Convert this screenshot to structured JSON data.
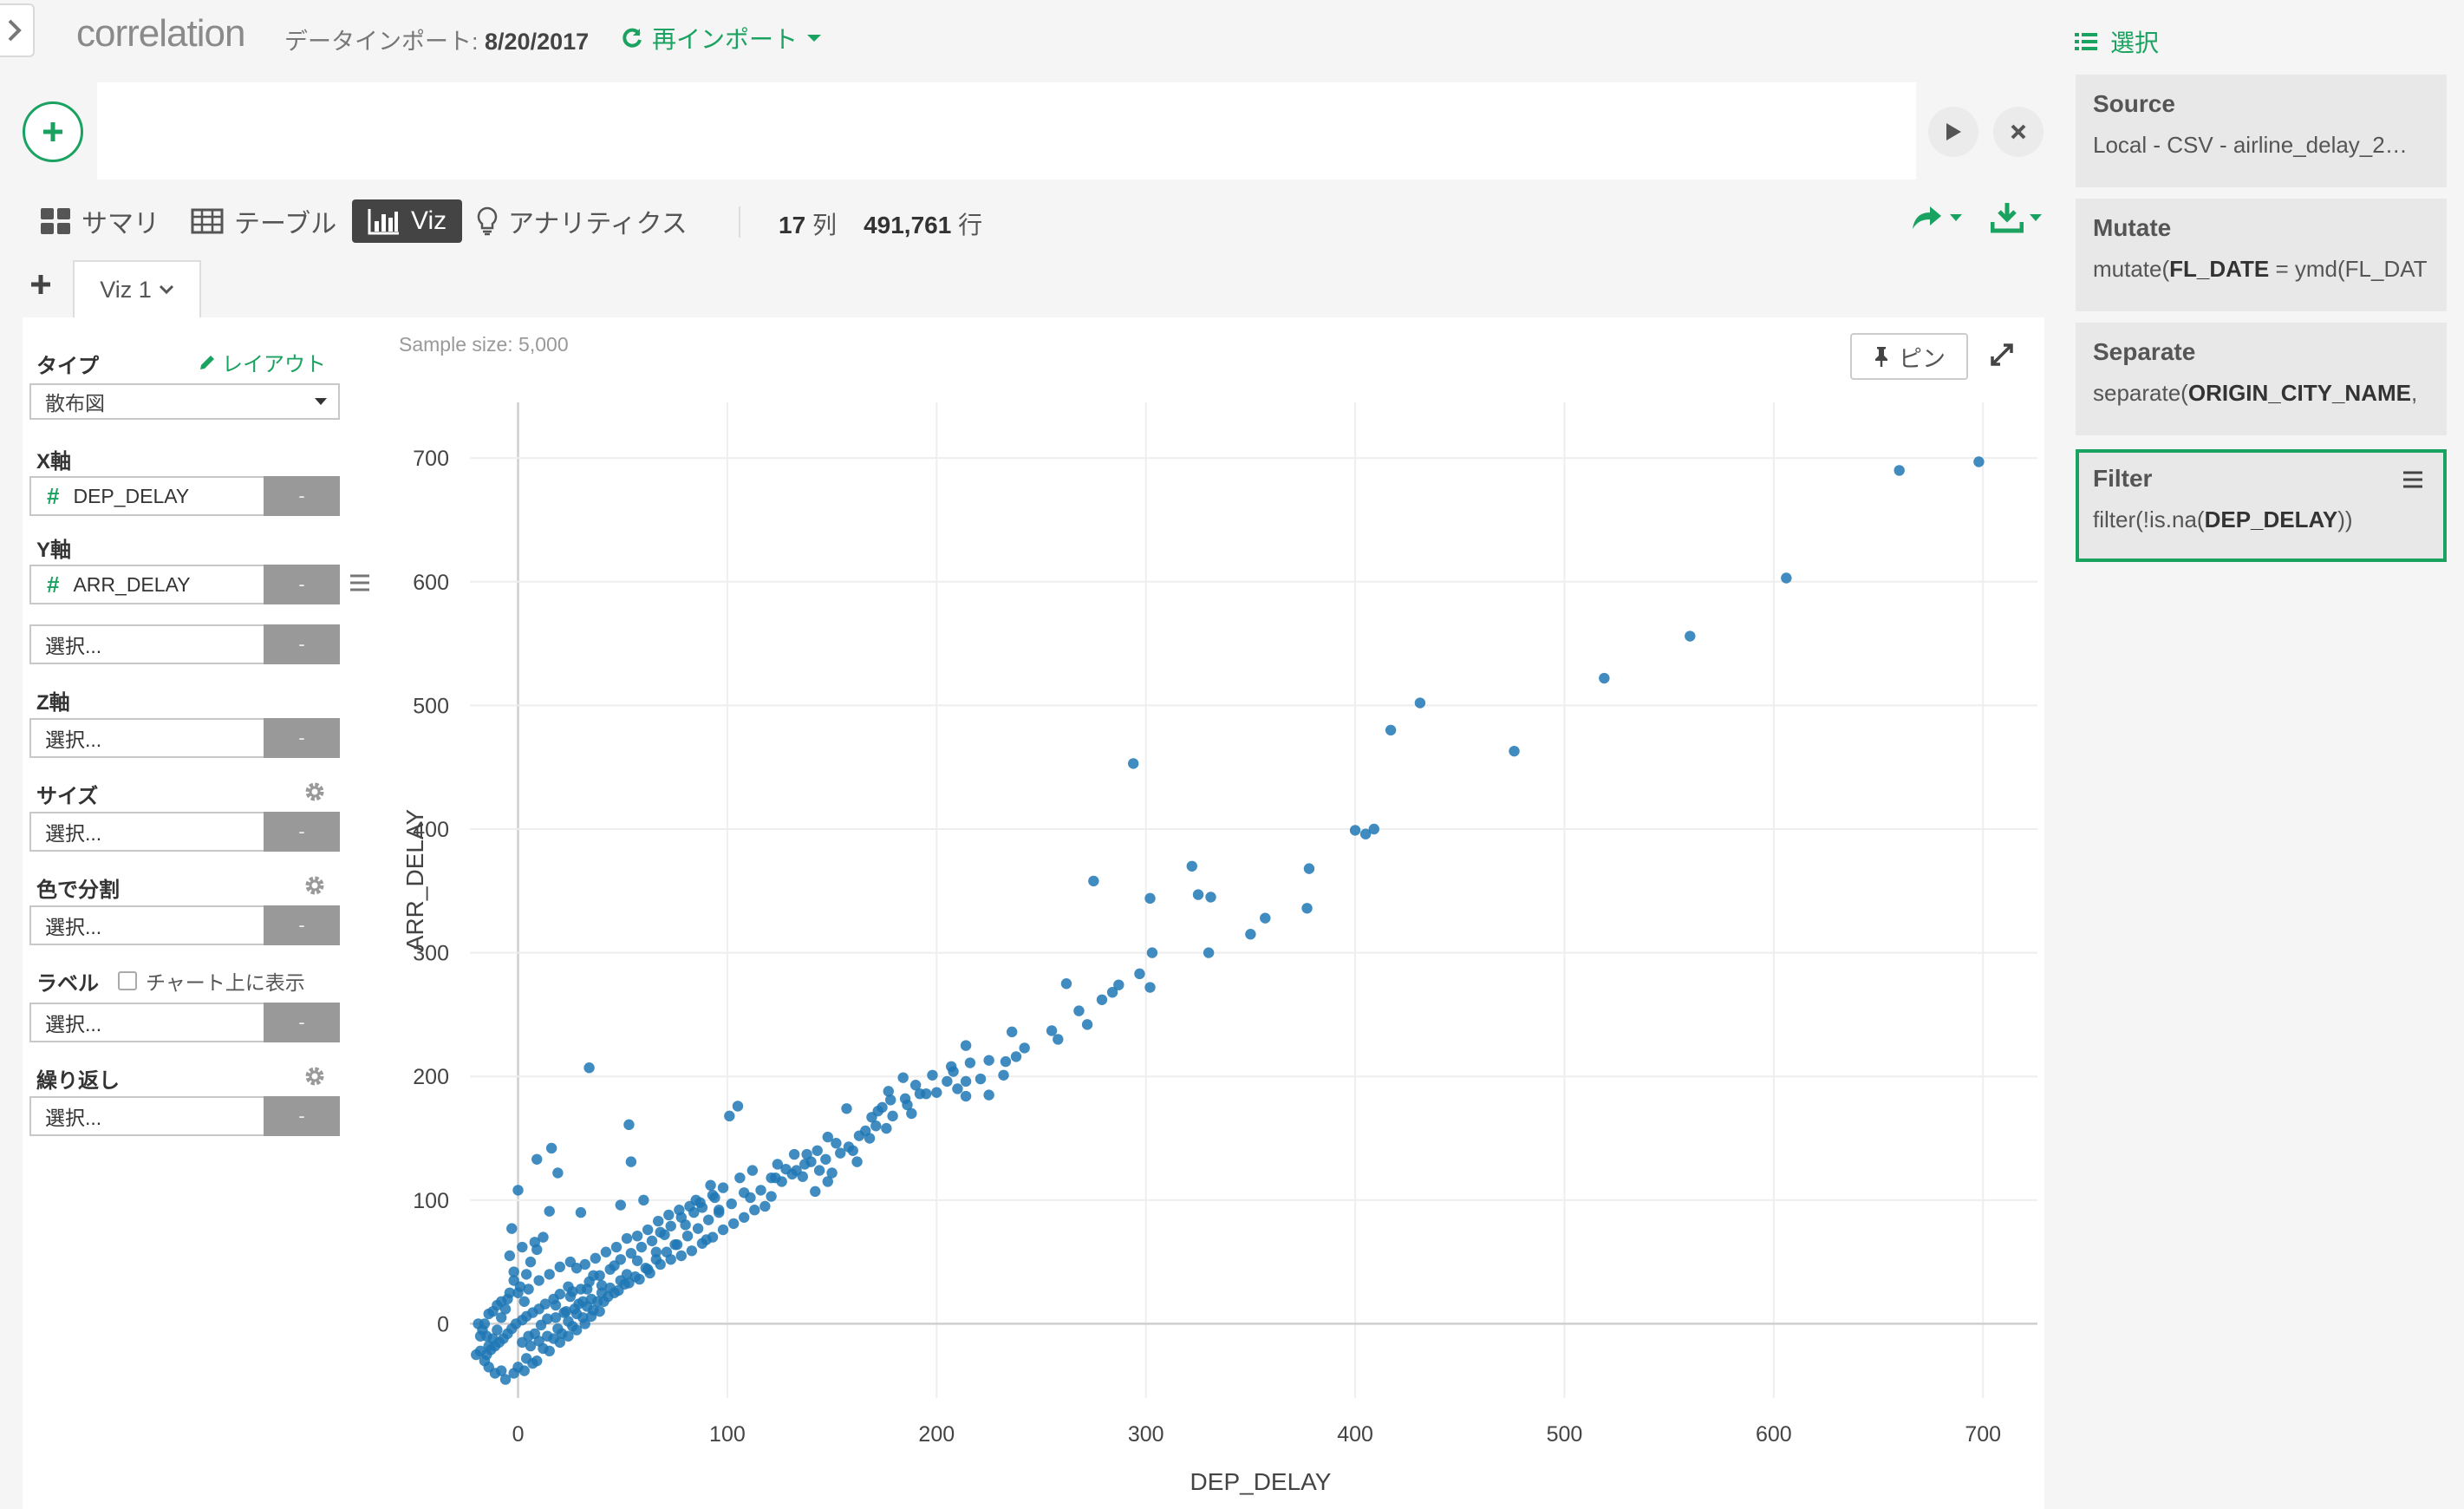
{
  "header": {
    "title": "correlation",
    "import_label": "データインポート: ",
    "import_date": "8/20/2017",
    "reimport_label": "再インポート"
  },
  "view_tabs": [
    {
      "label": "サマリ",
      "icon": "grid-icon"
    },
    {
      "label": "テーブル",
      "icon": "table-icon"
    },
    {
      "label": "Viz",
      "icon": "bar-chart-icon",
      "active": true
    },
    {
      "label": "アナリティクス",
      "icon": "lightbulb-icon"
    }
  ],
  "counts": {
    "cols_num": "17",
    "cols_unit": "列",
    "rows_num": "491,761",
    "rows_unit": "行"
  },
  "viz_tab": {
    "label": "Viz 1"
  },
  "config": {
    "type_label": "タイプ",
    "layout_link": "レイアウト",
    "type_value": "散布図",
    "x_label": "X軸",
    "x_value": "DEP_DELAY",
    "y_label": "Y軸",
    "y_value": "ARR_DELAY",
    "y2_placeholder": "選択...",
    "z_label": "Z軸",
    "z_placeholder": "選択...",
    "size_label": "サイズ",
    "size_placeholder": "選択...",
    "color_label": "色で分割",
    "color_placeholder": "選択...",
    "label_label": "ラベル",
    "label_checkbox": "チャート上に表示",
    "label_placeholder": "選択...",
    "repeat_label": "繰り返し",
    "repeat_placeholder": "選択...",
    "remove_btn": "-"
  },
  "chart_header": {
    "sample_size": "Sample size: 5,000",
    "pin_label": "ピン"
  },
  "sidebar": {
    "header": "選択",
    "steps": [
      {
        "title": "Source",
        "body_pre": "Local - CSV - airline_delay_2…",
        "body_bold": "",
        "body_post": ""
      },
      {
        "title": "Mutate",
        "body_pre": "mutate(",
        "body_bold": "FL_DATE",
        "body_post": " = ymd(FL_DAT"
      },
      {
        "title": "Separate",
        "body_pre": "separate(",
        "body_bold": "ORIGIN_CITY_NAME",
        "body_post": ","
      },
      {
        "title": "Filter",
        "body_pre": "filter(!is.na(",
        "body_bold": "DEP_DELAY",
        "body_post": "))"
      }
    ]
  },
  "colors": {
    "accent": "#1aa260",
    "point": "#1f77b4"
  },
  "chart_data": {
    "type": "scatter",
    "xlabel": "DEP_DELAY",
    "ylabel": "ARR_DELAY",
    "xlim": [
      -23,
      726
    ],
    "ylim": [
      -60,
      745
    ],
    "xticks": [
      0,
      100,
      200,
      300,
      400,
      500,
      600,
      700
    ],
    "yticks": [
      0,
      100,
      200,
      300,
      400,
      500,
      600,
      700
    ],
    "grid": true,
    "sample_size": 5000,
    "points": [
      [
        698,
        697
      ],
      [
        660,
        690
      ],
      [
        606,
        603
      ],
      [
        560,
        556
      ],
      [
        519,
        522
      ],
      [
        476,
        463
      ],
      [
        431,
        502
      ],
      [
        417,
        480
      ],
      [
        409,
        400
      ],
      [
        400,
        399
      ],
      [
        405,
        396
      ],
      [
        378,
        368
      ],
      [
        377,
        336
      ],
      [
        357,
        328
      ],
      [
        350,
        315
      ],
      [
        331,
        345
      ],
      [
        325,
        347
      ],
      [
        330,
        300
      ],
      [
        322,
        370
      ],
      [
        303,
        300
      ],
      [
        302,
        344
      ],
      [
        294,
        453
      ],
      [
        275,
        358
      ],
      [
        297,
        283
      ],
      [
        284,
        268
      ],
      [
        279,
        262
      ],
      [
        287,
        274
      ],
      [
        302,
        272
      ],
      [
        268,
        253
      ],
      [
        272,
        242
      ],
      [
        262,
        275
      ],
      [
        255,
        237
      ],
      [
        258,
        230
      ],
      [
        242,
        223
      ],
      [
        238,
        216
      ],
      [
        232,
        201
      ],
      [
        225,
        213
      ],
      [
        221,
        198
      ],
      [
        216,
        211
      ],
      [
        208,
        204
      ],
      [
        214,
        184
      ],
      [
        198,
        201
      ],
      [
        192,
        186
      ],
      [
        184,
        199
      ],
      [
        177,
        188
      ],
      [
        169,
        167
      ],
      [
        157,
        174
      ],
      [
        148,
        151
      ],
      [
        154,
        138
      ],
      [
        140,
        131
      ],
      [
        133,
        124
      ],
      [
        126,
        115
      ],
      [
        121,
        103
      ],
      [
        108,
        106
      ],
      [
        102,
        97
      ],
      [
        105,
        176
      ],
      [
        101,
        168
      ],
      [
        34,
        207
      ],
      [
        53,
        161
      ],
      [
        16,
        142
      ],
      [
        9,
        133
      ],
      [
        54,
        131
      ],
      [
        19,
        122
      ],
      [
        0,
        108
      ],
      [
        15,
        91
      ],
      [
        30,
        90
      ],
      [
        49,
        96
      ],
      [
        -3,
        77
      ],
      [
        8,
        66
      ],
      [
        60,
        100
      ],
      [
        85,
        100
      ],
      [
        92,
        112
      ],
      [
        96,
        92
      ],
      [
        80,
        80
      ],
      [
        90,
        68
      ],
      [
        75,
        64
      ],
      [
        66,
        58
      ],
      [
        70,
        72
      ],
      [
        62,
        44
      ],
      [
        57,
        51
      ],
      [
        52,
        40
      ],
      [
        46,
        47
      ],
      [
        40,
        31
      ],
      [
        36,
        39
      ],
      [
        33,
        28
      ],
      [
        29,
        16
      ],
      [
        25,
        22
      ],
      [
        22,
        9
      ],
      [
        18,
        15
      ],
      [
        14,
        4
      ],
      [
        11,
        -1
      ],
      [
        8,
        -8
      ],
      [
        5,
        -10
      ],
      [
        3,
        18
      ],
      [
        1,
        30
      ],
      [
        -2,
        42
      ],
      [
        -4,
        55
      ],
      [
        -6,
        12
      ],
      [
        -8,
        5
      ],
      [
        -10,
        -5
      ],
      [
        -12,
        -12
      ],
      [
        -14,
        -18
      ],
      [
        -15,
        -25
      ],
      [
        -16,
        -30
      ],
      [
        -18,
        -22
      ],
      [
        -11,
        -40
      ],
      [
        -6,
        -45
      ],
      [
        0,
        -35
      ],
      [
        4,
        -28
      ],
      [
        7,
        -32
      ],
      [
        12,
        -20
      ],
      [
        17,
        -12
      ],
      [
        21,
        -8
      ],
      [
        26,
        -2
      ],
      [
        31,
        5
      ],
      [
        36,
        11
      ],
      [
        41,
        18
      ],
      [
        46,
        25
      ],
      [
        51,
        32
      ],
      [
        56,
        38
      ],
      [
        61,
        45
      ],
      [
        66,
        52
      ],
      [
        71,
        58
      ],
      [
        76,
        64
      ],
      [
        81,
        71
      ],
      [
        86,
        77
      ],
      [
        91,
        84
      ],
      [
        96,
        90
      ],
      [
        111,
        102
      ],
      [
        116,
        108
      ],
      [
        121,
        118
      ],
      [
        131,
        121
      ],
      [
        137,
        129
      ],
      [
        143,
        140
      ],
      [
        147,
        133
      ],
      [
        152,
        146
      ],
      [
        158,
        143
      ],
      [
        163,
        152
      ],
      [
        171,
        160
      ],
      [
        179,
        168
      ],
      [
        186,
        177
      ],
      [
        195,
        186
      ],
      [
        205,
        196
      ],
      [
        210,
        190
      ],
      [
        118,
        95
      ],
      [
        123,
        118
      ],
      [
        128,
        125
      ],
      [
        136,
        119
      ],
      [
        142,
        107
      ],
      [
        148,
        115
      ],
      [
        160,
        140
      ],
      [
        166,
        156
      ],
      [
        172,
        172
      ],
      [
        178,
        181
      ],
      [
        188,
        170
      ],
      [
        200,
        187
      ],
      [
        214,
        196
      ],
      [
        225,
        185
      ],
      [
        233,
        212
      ],
      [
        236,
        236
      ],
      [
        214,
        225
      ],
      [
        207,
        208
      ],
      [
        190,
        193
      ],
      [
        185,
        182
      ],
      [
        174,
        175
      ],
      [
        176,
        158
      ],
      [
        168,
        150
      ],
      [
        162,
        131
      ],
      [
        150,
        122
      ],
      [
        144,
        124
      ],
      [
        138,
        137
      ],
      [
        132,
        137
      ],
      [
        124,
        129
      ],
      [
        112,
        124
      ],
      [
        106,
        118
      ],
      [
        98,
        110
      ],
      [
        94,
        102
      ],
      [
        88,
        94
      ],
      [
        84,
        90
      ],
      [
        78,
        86
      ],
      [
        73,
        79
      ],
      [
        68,
        74
      ],
      [
        64,
        67
      ],
      [
        59,
        62
      ],
      [
        54,
        57
      ],
      [
        49,
        52
      ],
      [
        44,
        44
      ],
      [
        39,
        39
      ],
      [
        34,
        34
      ],
      [
        30,
        28
      ],
      [
        26,
        26
      ],
      [
        24,
        30
      ],
      [
        20,
        24
      ],
      [
        17,
        20
      ],
      [
        13,
        16
      ],
      [
        10,
        12
      ],
      [
        7,
        9
      ],
      [
        4,
        6
      ],
      [
        2,
        3
      ],
      [
        -1,
        0
      ],
      [
        -3,
        -4
      ],
      [
        -5,
        -8
      ],
      [
        -7,
        -12
      ],
      [
        -9,
        -15
      ],
      [
        -11,
        -18
      ],
      [
        -13,
        -21
      ],
      [
        -15,
        -10
      ],
      [
        -17,
        -5
      ],
      [
        -19,
        0
      ],
      [
        -14,
        8
      ],
      [
        -10,
        15
      ],
      [
        -5,
        20
      ],
      [
        0,
        25
      ],
      [
        5,
        28
      ],
      [
        10,
        35
      ],
      [
        15,
        40
      ],
      [
        20,
        46
      ],
      [
        25,
        50
      ],
      [
        28,
        45
      ],
      [
        32,
        48
      ],
      [
        37,
        53
      ],
      [
        42,
        58
      ],
      [
        47,
        62
      ],
      [
        52,
        69
      ],
      [
        57,
        71
      ],
      [
        62,
        76
      ],
      [
        67,
        83
      ],
      [
        72,
        88
      ],
      [
        77,
        92
      ],
      [
        82,
        95
      ],
      [
        87,
        98
      ],
      [
        93,
        104
      ],
      [
        38,
        18
      ],
      [
        43,
        22
      ],
      [
        48,
        27
      ],
      [
        53,
        33
      ],
      [
        58,
        36
      ],
      [
        63,
        41
      ],
      [
        68,
        48
      ],
      [
        73,
        52
      ],
      [
        78,
        55
      ],
      [
        83,
        59
      ],
      [
        88,
        65
      ],
      [
        93,
        70
      ],
      [
        98,
        76
      ],
      [
        103,
        81
      ],
      [
        108,
        86
      ],
      [
        113,
        92
      ],
      [
        4,
        40
      ],
      [
        6,
        50
      ],
      [
        9,
        60
      ],
      [
        12,
        70
      ],
      [
        2,
        62
      ],
      [
        -2,
        35
      ],
      [
        -4,
        25
      ],
      [
        -8,
        18
      ],
      [
        -12,
        10
      ],
      [
        -16,
        0
      ],
      [
        -18,
        -10
      ],
      [
        -20,
        -25
      ],
      [
        -14,
        -35
      ],
      [
        -8,
        -38
      ],
      [
        -2,
        -40
      ],
      [
        3,
        -38
      ],
      [
        9,
        -30
      ],
      [
        15,
        -22
      ],
      [
        20,
        -15
      ],
      [
        24,
        -10
      ],
      [
        28,
        -5
      ],
      [
        32,
        0
      ],
      [
        35,
        6
      ],
      [
        39,
        10
      ],
      [
        18,
        5
      ],
      [
        23,
        10
      ],
      [
        27,
        12
      ],
      [
        31,
        18
      ],
      [
        35,
        20
      ],
      [
        40,
        25
      ],
      [
        44,
        29
      ],
      [
        49,
        35
      ],
      [
        2,
        -15
      ],
      [
        6,
        -18
      ],
      [
        10,
        -14
      ],
      [
        14,
        -10
      ],
      [
        19,
        -4
      ],
      [
        24,
        2
      ],
      [
        28,
        8
      ],
      [
        33,
        14
      ]
    ]
  }
}
